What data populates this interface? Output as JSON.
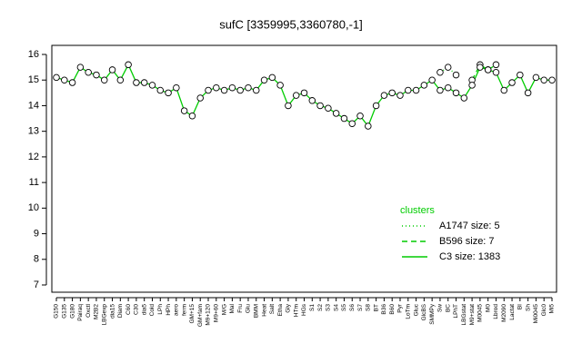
{
  "chart_data": {
    "type": "line",
    "title": "sufC [3359995,3360780,-1]",
    "categories": [
      "G150",
      "G135",
      "G180",
      "Pairaq",
      "Oxctl",
      "M2B2",
      "LBGexp",
      "dia15",
      "Diam",
      "C60",
      "C30",
      "dia5",
      "Cold",
      "LPh",
      "HPh",
      "aero",
      "ferm",
      "GM+15",
      "GM+fam",
      "M9+120",
      "M9+60",
      "M/G",
      "Mal",
      "Fru",
      "Glu",
      "BMM",
      "Heat",
      "Salt",
      "Etha",
      "Gly",
      "HTm",
      "HGs",
      "S1",
      "S2",
      "S3",
      "S4",
      "S5",
      "S6",
      "S7",
      "S8",
      "BT",
      "B36",
      "B60",
      "Pyr",
      "LoTm",
      "Gluc",
      "GlcBS",
      "SMMPy",
      "Sw",
      "BC",
      "LPhT",
      "LBGstat",
      "M9+stat",
      "M0045",
      "M0",
      "Lbrod",
      "M2090",
      "Lactat",
      "BI",
      "Sh",
      "Mi0045",
      "Glc0",
      "Mi5"
    ],
    "series": [
      {
        "name": "A1747 size: 5",
        "color": "#00cc00",
        "dash": "dotted",
        "values": [
          null,
          null,
          null,
          null,
          null,
          null,
          null,
          null,
          null,
          null,
          null,
          null,
          null,
          null,
          null,
          null,
          null,
          null,
          null,
          null,
          null,
          null,
          null,
          null,
          null,
          null,
          null,
          null,
          null,
          null,
          null,
          null,
          null,
          null,
          null,
          null,
          null,
          null,
          null,
          null,
          null,
          null,
          null,
          null,
          null,
          null,
          null,
          null,
          15.3,
          15.5,
          15.2,
          null,
          null,
          null,
          null,
          null,
          null,
          null,
          null,
          null,
          null,
          null,
          null
        ]
      },
      {
        "name": "B596 size: 7",
        "color": "#00cc00",
        "dash": "dashed",
        "values": [
          null,
          null,
          null,
          null,
          null,
          null,
          null,
          null,
          null,
          null,
          null,
          null,
          null,
          null,
          null,
          null,
          null,
          null,
          null,
          null,
          null,
          null,
          null,
          null,
          null,
          null,
          null,
          null,
          null,
          null,
          null,
          null,
          null,
          null,
          null,
          null,
          null,
          null,
          null,
          null,
          null,
          null,
          null,
          null,
          null,
          null,
          null,
          null,
          null,
          null,
          null,
          null,
          15.0,
          15.6,
          15.4,
          15.6,
          null,
          null,
          null,
          null,
          null,
          null,
          null
        ]
      },
      {
        "name": "C3 size: 1383",
        "color": "#00cc00",
        "dash": "solid",
        "values": [
          15.1,
          15.0,
          14.9,
          15.5,
          15.3,
          15.2,
          15.0,
          15.4,
          15.0,
          15.6,
          14.9,
          14.9,
          14.8,
          14.6,
          14.5,
          14.7,
          13.8,
          13.6,
          14.3,
          14.6,
          14.7,
          14.6,
          14.7,
          14.6,
          14.7,
          14.6,
          15.0,
          15.1,
          14.8,
          14.0,
          14.4,
          14.5,
          14.2,
          14.0,
          13.9,
          13.7,
          13.5,
          13.3,
          13.6,
          13.2,
          14.0,
          14.4,
          14.5,
          14.4,
          14.6,
          14.6,
          14.8,
          15.0,
          14.6,
          14.7,
          14.5,
          14.3,
          14.8,
          15.5,
          15.4,
          15.3,
          14.6,
          14.9,
          15.2,
          14.5,
          15.1,
          15.0,
          15.0
        ]
      }
    ],
    "markers": true,
    "legend_title": "clusters",
    "legend_position": "right",
    "ylim": [
      7,
      16
    ],
    "yticks": [
      7,
      8,
      9,
      10,
      11,
      12,
      13,
      14,
      15,
      16
    ]
  }
}
